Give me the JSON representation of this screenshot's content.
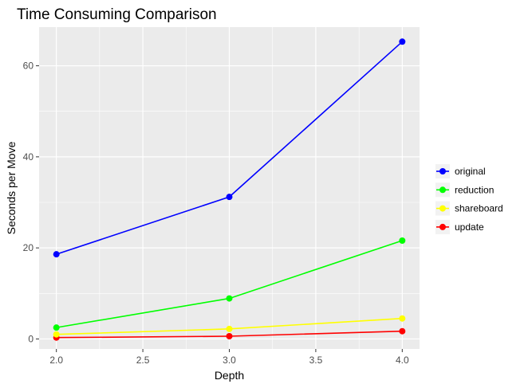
{
  "chart_data": {
    "type": "line",
    "title": "Time Consuming Comparison",
    "xlabel": "Depth",
    "ylabel": "Seconds per Move",
    "x": [
      2.0,
      3.0,
      4.0
    ],
    "xlim": [
      1.9,
      4.1
    ],
    "ylim": [
      -2.2,
      68.5
    ],
    "xticks": [
      2.0,
      2.5,
      3.0,
      3.5,
      4.0
    ],
    "xtick_labels": [
      "2.0",
      "2.5",
      "3.0",
      "3.5",
      "4.0"
    ],
    "yticks": [
      0,
      20,
      40,
      60
    ],
    "ytick_labels": [
      "0",
      "20",
      "40",
      "60"
    ],
    "grid": true,
    "legend_position": "right",
    "series": [
      {
        "name": "original",
        "color": "#0000ff",
        "values": [
          18.6,
          31.2,
          65.3
        ]
      },
      {
        "name": "reduction",
        "color": "#00ff00",
        "values": [
          2.5,
          8.9,
          21.6
        ]
      },
      {
        "name": "shareboard",
        "color": "#ffff00",
        "values": [
          1.0,
          2.2,
          4.5
        ]
      },
      {
        "name": "update",
        "color": "#ff0000",
        "values": [
          0.3,
          0.6,
          1.7
        ]
      }
    ]
  }
}
